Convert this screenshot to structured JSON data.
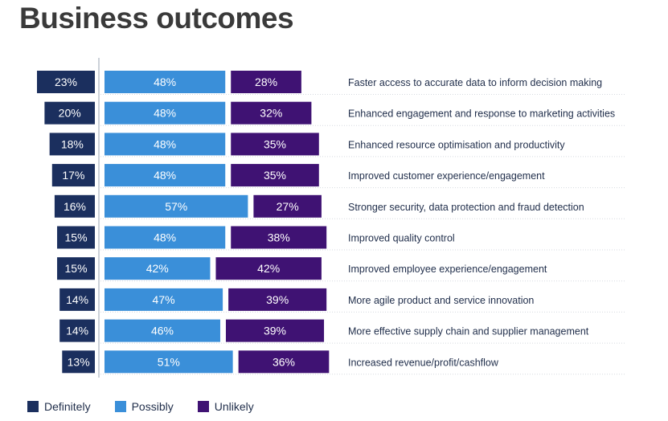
{
  "chart_data": {
    "type": "bar",
    "title": "Business outcomes",
    "categories": [
      "Faster access to accurate data to inform decision making",
      "Enhanced engagement and response to marketing activities",
      "Enhanced resource optimisation and productivity",
      "Improved customer experience/engagement",
      "Stronger security, data protection and fraud detection",
      "Improved quality control",
      "Improved employee experience/engagement",
      "More agile product and service innovation",
      "More effective supply chain and supplier management",
      "Increased revenue/profit/cashflow"
    ],
    "series": [
      {
        "name": "Definitely",
        "color": "#1b2f5e",
        "values": [
          23,
          20,
          18,
          17,
          16,
          15,
          15,
          14,
          14,
          13
        ]
      },
      {
        "name": "Possibly",
        "color": "#3a8fd9",
        "values": [
          48,
          48,
          48,
          48,
          57,
          48,
          42,
          47,
          46,
          51
        ]
      },
      {
        "name": "Unlikely",
        "color": "#3f1273",
        "values": [
          28,
          32,
          35,
          35,
          27,
          38,
          42,
          39,
          39,
          36
        ]
      }
    ],
    "value_suffix": "%",
    "stacked": true,
    "orientation": "horizontal",
    "legend_position": "bottom-left"
  }
}
